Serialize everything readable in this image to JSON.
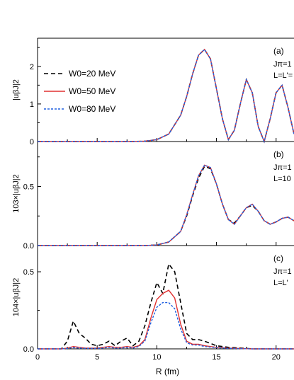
{
  "chart_data": [
    {
      "panel": "a",
      "type": "line",
      "panel_label": "(a)",
      "annotations": [
        "Jπ=1",
        "L=L'="
      ],
      "ylabel": "|uβJ|2",
      "xlim": [
        0,
        21.5
      ],
      "ylim": [
        0,
        2.75
      ],
      "yticks": [
        0,
        1,
        2
      ],
      "legend": {
        "placement": "left",
        "entries": [
          "W0=20 MeV",
          "W0=50 MeV",
          "W0=80 MeV"
        ]
      },
      "series": [
        {
          "name": "W0=20 MeV",
          "color": "#000000",
          "dash": "6,4",
          "x": [
            0,
            8,
            9,
            10,
            11,
            12,
            12.5,
            13,
            13.5,
            14,
            14.5,
            15,
            15.5,
            16,
            16.5,
            17,
            17.5,
            18,
            18.5,
            19,
            19.5,
            20,
            20.5,
            21,
            21.5
          ],
          "y": [
            0,
            0,
            0.01,
            0.05,
            0.2,
            0.7,
            1.2,
            1.8,
            2.3,
            2.45,
            2.2,
            1.4,
            0.6,
            0.05,
            0.3,
            1.0,
            1.65,
            1.3,
            0.4,
            0.0,
            0.6,
            1.3,
            1.5,
            0.9,
            0.2
          ]
        },
        {
          "name": "W0=50 MeV",
          "color": "#e03030",
          "dash": "",
          "x": [
            0,
            8,
            9,
            10,
            11,
            12,
            12.5,
            13,
            13.5,
            14,
            14.5,
            15,
            15.5,
            16,
            16.5,
            17,
            17.5,
            18,
            18.5,
            19,
            19.5,
            20,
            20.5,
            21,
            21.5
          ],
          "y": [
            0,
            0,
            0.01,
            0.05,
            0.2,
            0.7,
            1.2,
            1.8,
            2.3,
            2.45,
            2.2,
            1.4,
            0.6,
            0.05,
            0.3,
            1.0,
            1.65,
            1.3,
            0.4,
            0.0,
            0.6,
            1.3,
            1.5,
            0.9,
            0.2
          ]
        },
        {
          "name": "W0=80 MeV",
          "color": "#2060e0",
          "dash": "3,2",
          "x": [
            0,
            8,
            9,
            10,
            11,
            12,
            12.5,
            13,
            13.5,
            14,
            14.5,
            15,
            15.5,
            16,
            16.5,
            17,
            17.5,
            18,
            18.5,
            19,
            19.5,
            20,
            20.5,
            21,
            21.5
          ],
          "y": [
            0,
            0,
            0.01,
            0.05,
            0.2,
            0.7,
            1.2,
            1.8,
            2.3,
            2.45,
            2.2,
            1.4,
            0.6,
            0.05,
            0.3,
            1.0,
            1.65,
            1.3,
            0.4,
            0.0,
            0.6,
            1.3,
            1.5,
            0.9,
            0.2
          ]
        }
      ]
    },
    {
      "panel": "b",
      "type": "line",
      "panel_label": "(b)",
      "annotations": [
        "Jπ=1",
        "L=10"
      ],
      "ylabel": "103×|uβJ|2",
      "xlim": [
        0,
        21.5
      ],
      "ylim": [
        0,
        0.88
      ],
      "yticks": [
        0.0,
        0.5
      ],
      "series": [
        {
          "name": "W0=20 MeV",
          "color": "#000000",
          "dash": "6,4",
          "x": [
            0,
            8,
            9,
            10,
            11,
            12,
            12.5,
            13,
            13.5,
            14,
            14.5,
            15,
            15.5,
            16,
            16.5,
            17,
            17.5,
            18,
            18.5,
            19,
            19.5,
            20,
            20.5,
            21,
            21.5
          ],
          "y": [
            0,
            0,
            0,
            0.005,
            0.03,
            0.12,
            0.25,
            0.42,
            0.57,
            0.67,
            0.65,
            0.52,
            0.35,
            0.22,
            0.19,
            0.25,
            0.32,
            0.34,
            0.29,
            0.21,
            0.18,
            0.2,
            0.23,
            0.24,
            0.21
          ]
        },
        {
          "name": "W0=50 MeV",
          "color": "#e03030",
          "dash": "",
          "x": [
            0,
            8,
            9,
            10,
            11,
            12,
            12.5,
            13,
            13.5,
            14,
            14.5,
            15,
            15.5,
            16,
            16.5,
            17,
            17.5,
            18,
            18.5,
            19,
            19.5,
            20,
            20.5,
            21,
            21.5
          ],
          "y": [
            0,
            0,
            0,
            0.005,
            0.03,
            0.12,
            0.26,
            0.43,
            0.59,
            0.68,
            0.66,
            0.52,
            0.35,
            0.22,
            0.18,
            0.25,
            0.32,
            0.35,
            0.29,
            0.21,
            0.18,
            0.2,
            0.23,
            0.24,
            0.21
          ]
        },
        {
          "name": "W0=80 MeV",
          "color": "#2060e0",
          "dash": "3,2",
          "x": [
            0,
            8,
            9,
            10,
            11,
            12,
            12.5,
            13,
            13.5,
            14,
            14.5,
            15,
            15.5,
            16,
            16.5,
            17,
            17.5,
            18,
            18.5,
            19,
            19.5,
            20,
            20.5,
            21,
            21.5
          ],
          "y": [
            0,
            0,
            0,
            0.005,
            0.03,
            0.12,
            0.26,
            0.43,
            0.59,
            0.68,
            0.66,
            0.52,
            0.35,
            0.22,
            0.18,
            0.25,
            0.32,
            0.35,
            0.29,
            0.21,
            0.18,
            0.2,
            0.23,
            0.24,
            0.21
          ]
        }
      ]
    },
    {
      "panel": "c",
      "type": "line",
      "panel_label": "(c)",
      "annotations": [
        "Jπ=1",
        "L=L'"
      ],
      "ylabel": "104×|uβJ|2",
      "xlabel": "R (fm)",
      "xlim": [
        0,
        21.5
      ],
      "ylim": [
        0,
        0.67
      ],
      "yticks": [
        0.0,
        0.5
      ],
      "xticks": [
        0,
        5,
        10,
        15,
        20
      ],
      "series": [
        {
          "name": "W0=20 MeV",
          "color": "#000000",
          "dash": "6,4",
          "x": [
            0,
            2,
            2.5,
            3,
            3.5,
            4,
            4.5,
            5,
            5.5,
            6,
            6.5,
            7,
            7.5,
            8,
            8.5,
            9,
            9.5,
            10,
            10.5,
            11,
            11.5,
            12,
            12.5,
            13,
            13.5,
            14,
            15,
            16,
            18,
            21.5
          ],
          "y": [
            0,
            0,
            0.05,
            0.18,
            0.1,
            0.07,
            0.03,
            0.02,
            0.03,
            0.05,
            0.02,
            0.05,
            0.07,
            0.02,
            0.05,
            0.15,
            0.3,
            0.43,
            0.36,
            0.55,
            0.5,
            0.3,
            0.1,
            0.06,
            0.06,
            0.05,
            0.02,
            0.01,
            0,
            0
          ]
        },
        {
          "name": "W0=50 MeV",
          "color": "#e03030",
          "dash": "",
          "x": [
            0,
            2,
            2.5,
            3,
            3.5,
            4,
            4.5,
            5,
            5.5,
            6,
            6.5,
            7,
            7.5,
            8,
            8.5,
            9,
            9.5,
            10,
            10.5,
            11,
            11.5,
            12,
            12.5,
            13,
            13.5,
            14,
            15,
            16,
            18,
            21.5
          ],
          "y": [
            0,
            0,
            0.005,
            0.015,
            0.01,
            0.005,
            0.005,
            0.005,
            0.01,
            0.015,
            0.01,
            0.01,
            0.015,
            0.01,
            0.02,
            0.06,
            0.2,
            0.32,
            0.36,
            0.38,
            0.33,
            0.16,
            0.05,
            0.03,
            0.03,
            0.02,
            0.01,
            0.005,
            0,
            0
          ]
        },
        {
          "name": "W0=80 MeV",
          "color": "#2060e0",
          "dash": "3,2",
          "x": [
            0,
            2,
            2.5,
            3,
            3.5,
            4,
            4.5,
            5,
            5.5,
            6,
            6.5,
            7,
            7.5,
            8,
            8.5,
            9,
            9.5,
            10,
            10.5,
            11,
            11.5,
            12,
            12.5,
            13,
            13.5,
            14,
            15,
            16,
            18,
            21.5
          ],
          "y": [
            0,
            0,
            0.003,
            0.008,
            0.005,
            0.003,
            0.003,
            0.003,
            0.005,
            0.01,
            0.005,
            0.005,
            0.01,
            0.005,
            0.015,
            0.05,
            0.17,
            0.27,
            0.3,
            0.3,
            0.26,
            0.13,
            0.04,
            0.025,
            0.025,
            0.015,
            0.008,
            0.003,
            0,
            0
          ]
        }
      ]
    }
  ]
}
